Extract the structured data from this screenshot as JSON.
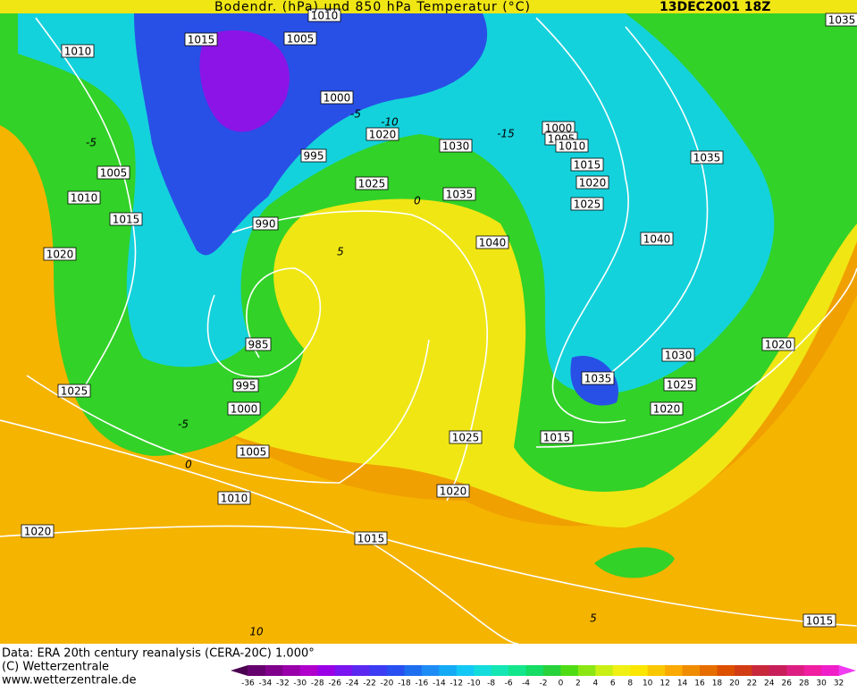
{
  "header": {
    "title": "Bodendr. (hPa) und 850 hPa Temperatur (°C)",
    "date": "13DEC2001 18Z"
  },
  "isobar_labels": [
    "1010",
    "1015",
    "1005",
    "1010",
    "1000",
    "1020",
    "995",
    "1030",
    "1025",
    "1035",
    "990",
    "1040",
    "1000",
    "1005",
    "1010",
    "1015",
    "1020",
    "1025",
    "1035",
    "1040",
    "1005",
    "1010",
    "1015",
    "1020",
    "985",
    "995",
    "1000",
    "1005",
    "1010",
    "1025",
    "1020",
    "1015",
    "1025",
    "1020",
    "1015",
    "1035",
    "1030",
    "1025",
    "1020",
    "1020",
    "1015",
    "1035"
  ],
  "isotherm_labels": [
    "-5",
    "-5",
    "-10",
    "-15",
    "0",
    "5",
    "-5",
    "0",
    "10",
    "5"
  ],
  "footer": {
    "data": "Data: ERA 20th century reanalysis (CERA-20C) 1.000°",
    "copyright": "(C) Wetterzentrale",
    "url": "www.wetterzentrale.de"
  },
  "colorbar": {
    "labels": [
      "-36",
      "-34",
      "-32",
      "-30",
      "-28",
      "-26",
      "-24",
      "-22",
      "-20",
      "-18",
      "-16",
      "-14",
      "-12",
      "-10",
      "-8",
      "-6",
      "-4",
      "-2",
      "0",
      "2",
      "4",
      "6",
      "8",
      "10",
      "12",
      "14",
      "16",
      "18",
      "20",
      "22",
      "24",
      "26",
      "28",
      "30",
      "32"
    ],
    "colors": [
      "#4b0050",
      "#66006e",
      "#80008c",
      "#9900aa",
      "#b000cc",
      "#9a00e6",
      "#7a14f0",
      "#5a28f0",
      "#3c3cf5",
      "#2850f0",
      "#1e6ef0",
      "#1e8cf5",
      "#14aaf5",
      "#14c8f5",
      "#14dcdc",
      "#14e6b4",
      "#14e68c",
      "#14dc64",
      "#28d23c",
      "#50dc14",
      "#8ce614",
      "#c8f014",
      "#f0f014",
      "#fae600",
      "#fac800",
      "#faaa00",
      "#f08c00",
      "#e66e00",
      "#dc5000",
      "#d23c14",
      "#c8283c",
      "#c81e5a",
      "#dc1e82",
      "#f01ea0",
      "#f01ec8",
      "#f03cf0"
    ]
  }
}
